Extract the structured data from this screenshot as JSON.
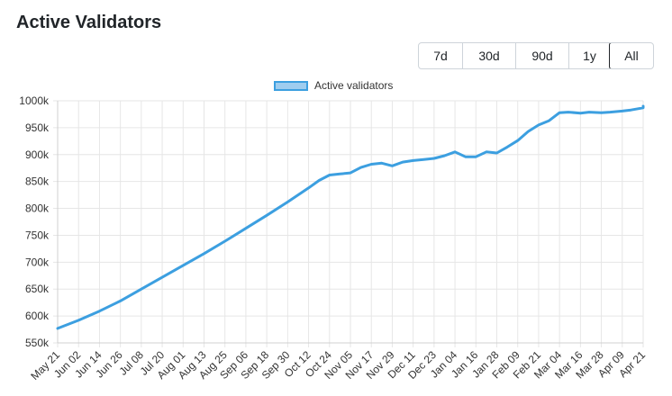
{
  "header": {
    "title": "Active Validators"
  },
  "range_buttons": [
    {
      "label": "7d",
      "active": false
    },
    {
      "label": "30d",
      "active": false
    },
    {
      "label": "90d",
      "active": false
    },
    {
      "label": "1y",
      "active": false
    },
    {
      "label": "All",
      "active": true
    }
  ],
  "colors": {
    "line": "#3c9fe0",
    "fill": "#9fcdef",
    "grid": "#e6e6e6"
  },
  "chart_data": {
    "type": "line",
    "title": "",
    "xlabel": "",
    "ylabel": "",
    "legend": {
      "placement": "top-center",
      "entries": [
        "Active validators"
      ]
    },
    "grid": true,
    "ylim": [
      550000,
      1000000
    ],
    "y_ticks": [
      "1000k",
      "950k",
      "900k",
      "850k",
      "800k",
      "750k",
      "700k",
      "650k",
      "600k",
      "550k"
    ],
    "y_tick_values": [
      1000000,
      950000,
      900000,
      850000,
      800000,
      750000,
      700000,
      650000,
      600000,
      550000
    ],
    "x_ticks": [
      "May 21",
      "Jun 02",
      "Jun 14",
      "Jun 26",
      "Jul 08",
      "Jul 20",
      "Aug 01",
      "Aug 13",
      "Aug 25",
      "Sep 06",
      "Sep 18",
      "Sep 30",
      "Oct 12",
      "Oct 24",
      "Nov 05",
      "Nov 17",
      "Nov 29",
      "Dec 11",
      "Dec 23",
      "Jan 04",
      "Jan 16",
      "Jan 28",
      "Feb 09",
      "Feb 21",
      "Mar 04",
      "Mar 16",
      "Mar 28",
      "Apr 09",
      "Apr 21"
    ],
    "series": [
      {
        "name": "Active validators",
        "x": [
          "May 21",
          "Jun 02",
          "Jun 14",
          "Jun 26",
          "Jul 08",
          "Jul 20",
          "Aug 01",
          "Aug 13",
          "Aug 25",
          "Sep 06",
          "Sep 18",
          "Sep 30",
          "Oct 12",
          "Oct 18",
          "Oct 24",
          "Oct 30",
          "Nov 05",
          "Nov 11",
          "Nov 17",
          "Nov 23",
          "Nov 29",
          "Dec 05",
          "Dec 11",
          "Dec 17",
          "Dec 23",
          "Dec 29",
          "Jan 04",
          "Jan 10",
          "Jan 16",
          "Jan 22",
          "Jan 28",
          "Feb 03",
          "Feb 09",
          "Feb 15",
          "Feb 21",
          "Feb 27",
          "Mar 04",
          "Mar 10",
          "Mar 16",
          "Mar 22",
          "Mar 28",
          "Apr 03",
          "Apr 09",
          "Apr 15",
          "Apr 21",
          "Apr 24"
        ],
        "values": [
          577000,
          592000,
          609000,
          628000,
          650000,
          672000,
          694000,
          716000,
          739000,
          763000,
          787000,
          812000,
          838000,
          852000,
          862000,
          864000,
          866000,
          876000,
          882000,
          884000,
          879000,
          886000,
          889000,
          891000,
          893000,
          898000,
          905000,
          896000,
          896000,
          905000,
          903000,
          914000,
          926000,
          943000,
          955000,
          963000,
          978000,
          979000,
          977000,
          979000,
          978000,
          979000,
          981000,
          983000,
          987000,
          990000
        ]
      }
    ]
  }
}
